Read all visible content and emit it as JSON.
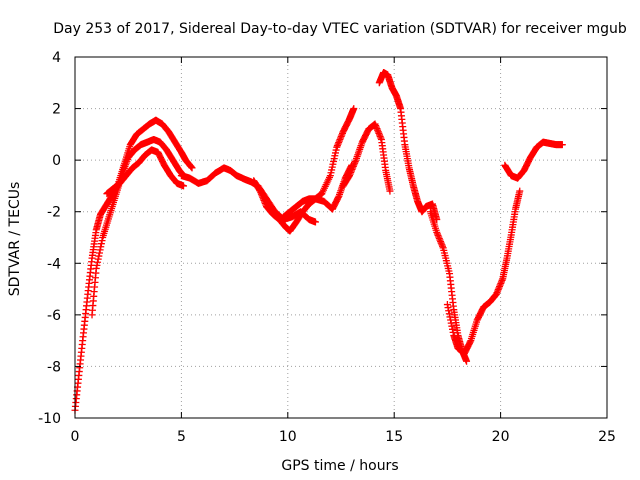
{
  "chart_data": {
    "type": "scatter",
    "title": "Day 253 of 2017, Sidereal Day-to-day VTEC variation (SDTVAR) for receiver mgub",
    "xlabel": "GPS time / hours",
    "ylabel": "SDTVAR / TECUs",
    "xlim": [
      0,
      25
    ],
    "ylim": [
      -10,
      4
    ],
    "xticks": [
      0,
      5,
      10,
      15,
      20,
      25
    ],
    "yticks": [
      -10,
      -8,
      -6,
      -4,
      -2,
      0,
      2,
      4
    ],
    "xtick_labels": [
      "0",
      "5",
      "10",
      "15",
      "20",
      "25"
    ],
    "ytick_labels": [
      "-10",
      "-8",
      "-6",
      "-4",
      "-2",
      "0",
      "2",
      "4"
    ],
    "grid": true,
    "marker": "+",
    "color": "#ff0000",
    "series": [
      {
        "x": [
          0.0,
          0.2,
          0.4,
          0.6,
          0.8,
          1.0,
          1.2,
          1.5,
          1.8,
          2.0,
          2.3,
          2.6,
          2.9,
          3.2,
          3.5,
          3.8,
          4.1,
          4.4,
          4.7,
          5.0,
          5.2,
          5.5
        ],
        "y": [
          -9.7,
          -8.2,
          -6.7,
          -5.2,
          -3.8,
          -2.7,
          -2.1,
          -1.7,
          -1.3,
          -1.0,
          -0.2,
          0.6,
          1.0,
          1.2,
          1.4,
          1.55,
          1.4,
          1.1,
          0.7,
          0.3,
          0.0,
          -0.3
        ]
      },
      {
        "x": [
          0.8,
          1.0,
          1.3,
          1.6,
          1.9,
          2.2,
          2.5,
          2.8,
          3.1,
          3.4,
          3.7,
          4.0,
          4.3,
          4.6,
          4.9,
          5.1
        ],
        "y": [
          -6.0,
          -4.2,
          -3.0,
          -2.2,
          -1.4,
          -0.6,
          0.1,
          0.4,
          0.6,
          0.7,
          0.8,
          0.7,
          0.4,
          0.0,
          -0.4,
          -0.6
        ]
      },
      {
        "x": [
          1.5,
          1.8,
          2.1,
          2.4,
          2.7,
          3.0,
          3.3,
          3.6,
          3.9,
          4.2,
          4.5,
          4.8,
          5.1
        ],
        "y": [
          -1.3,
          -1.1,
          -0.9,
          -0.6,
          -0.3,
          -0.1,
          0.2,
          0.4,
          0.3,
          -0.2,
          -0.6,
          -0.9,
          -1.0
        ]
      },
      {
        "x": [
          5.0,
          5.4,
          5.8,
          6.2,
          6.6,
          7.0,
          7.3,
          7.6,
          8.0,
          8.3,
          8.6,
          9.0,
          9.4,
          9.8,
          10.2,
          10.6,
          11.0,
          11.3
        ],
        "y": [
          -0.6,
          -0.7,
          -0.9,
          -0.8,
          -0.5,
          -0.3,
          -0.4,
          -0.6,
          -0.75,
          -0.85,
          -1.0,
          -1.5,
          -2.0,
          -2.3,
          -2.2,
          -2.0,
          -2.3,
          -2.4
        ]
      },
      {
        "x": [
          8.4,
          8.7,
          9.0,
          9.3,
          9.6,
          9.9,
          10.1,
          10.4,
          10.7,
          11.0,
          11.3,
          11.7,
          12.1,
          12.4,
          12.7,
          13.0
        ],
        "y": [
          -0.8,
          -1.2,
          -1.8,
          -2.1,
          -2.3,
          -2.6,
          -2.75,
          -2.4,
          -2.0,
          -1.7,
          -1.5,
          -1.6,
          -1.9,
          -1.4,
          -0.7,
          -0.2
        ]
      },
      {
        "x": [
          9.8,
          10.1,
          10.4,
          10.7,
          11.0,
          11.3,
          11.6,
          12.0,
          12.3,
          12.6,
          12.9,
          13.1
        ],
        "y": [
          -2.2,
          -2.0,
          -1.8,
          -1.6,
          -1.5,
          -1.5,
          -1.3,
          -0.6,
          0.5,
          1.1,
          1.6,
          2.0
        ]
      },
      {
        "x": [
          12.6,
          12.9,
          13.2,
          13.5,
          13.8,
          14.1,
          14.4,
          14.6,
          14.8
        ],
        "y": [
          -1.0,
          -0.6,
          0.0,
          0.7,
          1.2,
          1.4,
          0.8,
          -0.4,
          -1.2
        ]
      },
      {
        "x": [
          14.3,
          14.5,
          14.7,
          14.9,
          15.1,
          15.3,
          15.5,
          15.7,
          15.9,
          16.1,
          16.3,
          16.5,
          16.8,
          17.0
        ],
        "y": [
          3.0,
          3.4,
          3.3,
          2.8,
          2.5,
          2.0,
          0.6,
          -0.3,
          -1.0,
          -1.6,
          -2.0,
          -1.8,
          -1.7,
          -2.3
        ]
      },
      {
        "x": [
          16.7,
          17.0,
          17.3,
          17.6,
          17.8,
          18.0,
          18.2,
          18.4
        ],
        "y": [
          -2.0,
          -2.8,
          -3.4,
          -4.4,
          -5.8,
          -6.8,
          -7.4,
          -7.8
        ]
      },
      {
        "x": [
          17.5,
          17.8,
          18.0,
          18.3,
          18.6,
          18.9,
          19.2,
          19.5,
          19.8,
          20.1,
          20.3,
          20.5,
          20.7,
          20.9
        ],
        "y": [
          -5.6,
          -6.8,
          -7.3,
          -7.5,
          -7.0,
          -6.2,
          -5.7,
          -5.5,
          -5.2,
          -4.6,
          -3.8,
          -2.9,
          -1.9,
          -1.2
        ]
      },
      {
        "x": [
          20.2,
          20.5,
          20.8,
          21.1,
          21.4,
          21.7,
          22.0,
          22.3,
          22.6,
          22.9
        ],
        "y": [
          -0.2,
          -0.6,
          -0.7,
          -0.4,
          0.1,
          0.5,
          0.7,
          0.65,
          0.6,
          0.6
        ]
      }
    ]
  }
}
